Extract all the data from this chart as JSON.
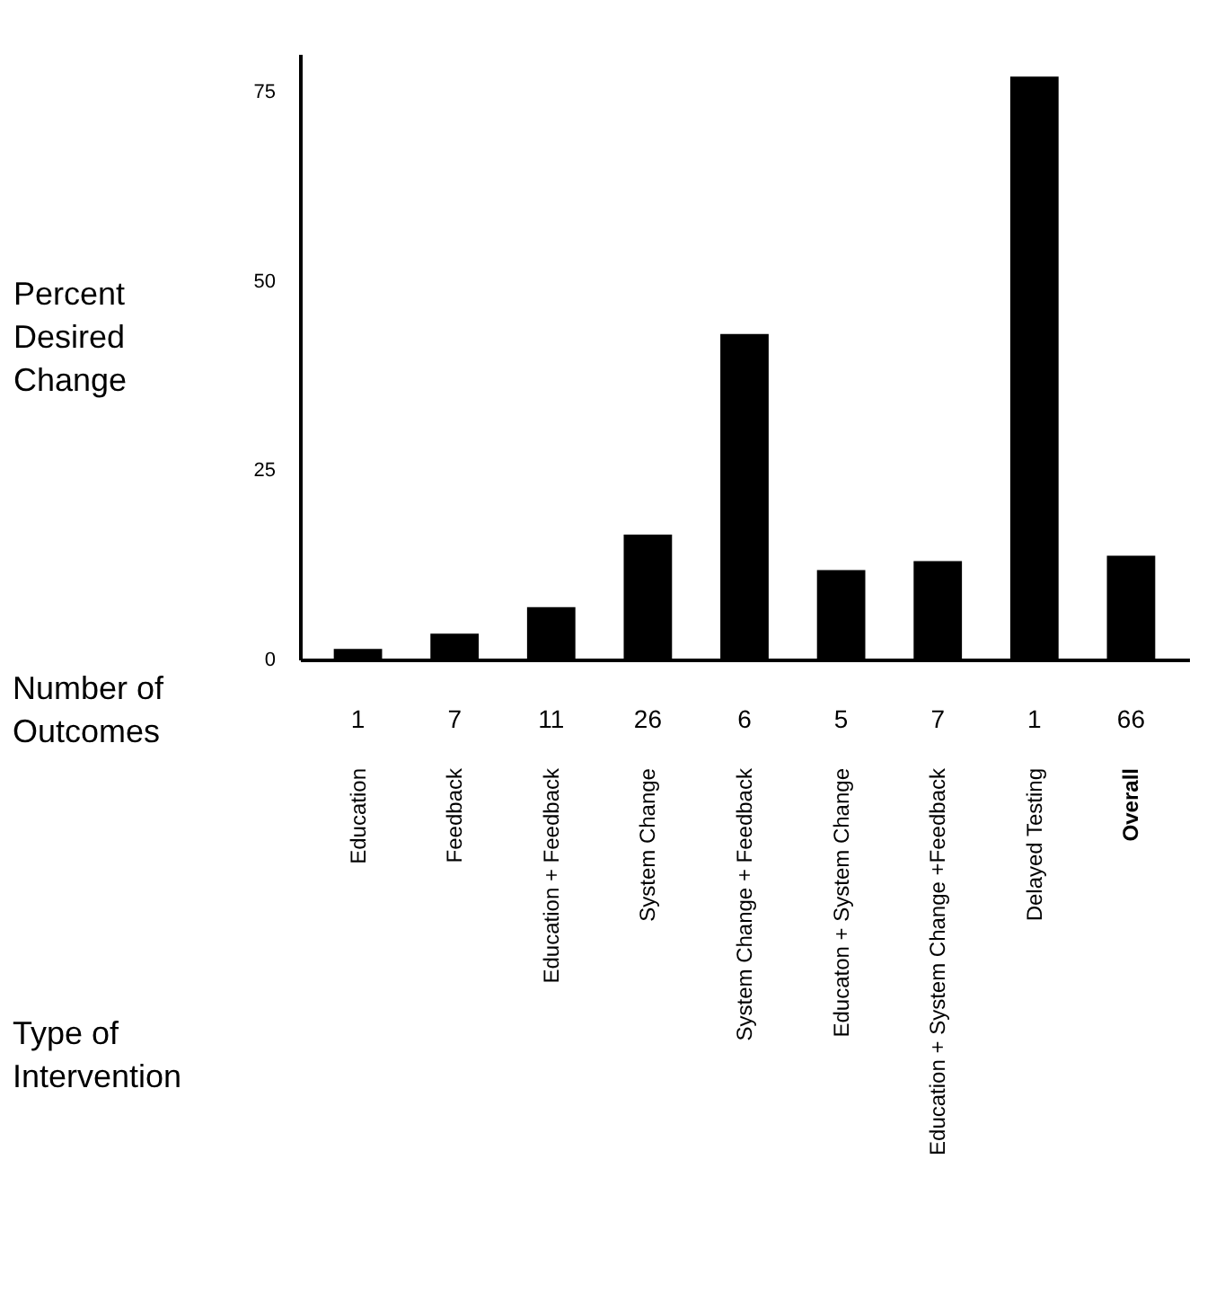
{
  "chart_data": {
    "type": "bar",
    "categories": [
      "Education",
      "Feedback",
      "Education + Feedback",
      "System Change",
      "System Change + Feedback",
      "Educaton + System Change",
      "Education + System Change +Feedback",
      "Delayed Testing",
      "Overall"
    ],
    "values": [
      1.4,
      3.4,
      6.9,
      16.5,
      43,
      11.8,
      13,
      77,
      13.7
    ],
    "color": "#000000",
    "ylabel": "Percent Desired Change",
    "ylim": [
      0,
      80
    ],
    "yticks": [
      0,
      25,
      50,
      75
    ],
    "annotations": [
      "Number of Outcomes",
      "1",
      "7",
      "11",
      "26",
      "6",
      "5",
      "7",
      "1",
      "66",
      "Type of Intervention"
    ],
    "grid": false
  }
}
